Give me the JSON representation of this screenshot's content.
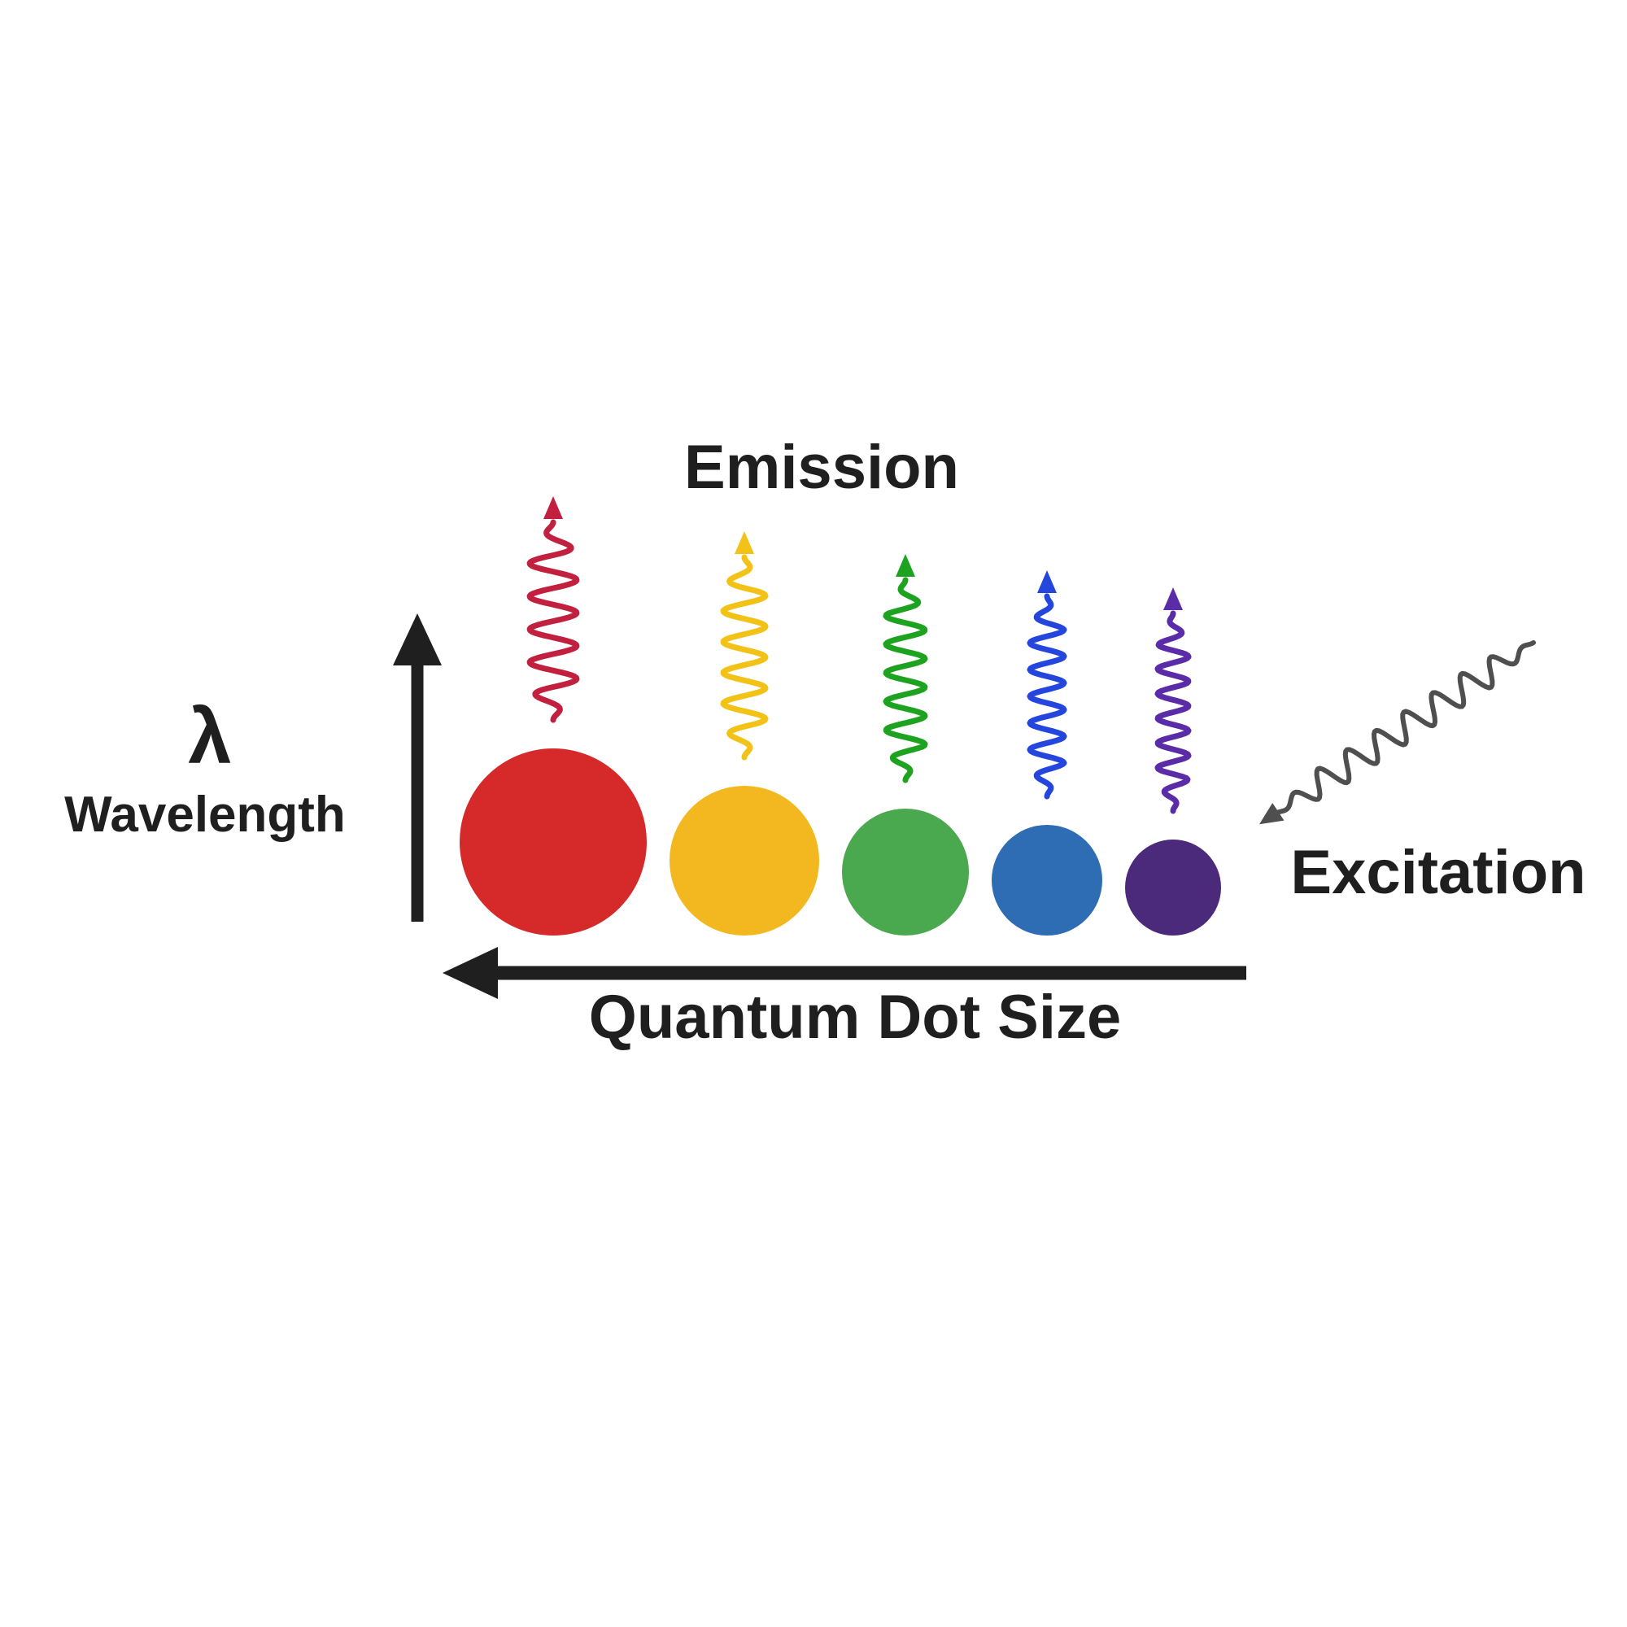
{
  "canvas": {
    "background": "#ffffff",
    "ink": "#1f1f1f"
  },
  "labels": {
    "emission": "Emission",
    "excitation": "Excitation",
    "lambda": "λ",
    "y_axis": "Wavelength",
    "x_axis": "Quantum Dot Size"
  },
  "dots": [
    {
      "name": "red-quantum-dot",
      "color": "#d62a2a",
      "wave_color": "#c2203f",
      "radius": 115,
      "wave_amplitude": 29,
      "wave_cycles": 6,
      "wave_length": 255
    },
    {
      "name": "yellow-quantum-dot",
      "color": "#f3b71f",
      "wave_color": "#f2c216",
      "radius": 92,
      "wave_amplitude": 26,
      "wave_cycles": 6.5,
      "wave_length": 258
    },
    {
      "name": "green-quantum-dot",
      "color": "#4aa84e",
      "wave_color": "#1ea321",
      "radius": 78,
      "wave_amplitude": 24,
      "wave_cycles": 7,
      "wave_length": 258
    },
    {
      "name": "blue-quantum-dot",
      "color": "#2e6db4",
      "wave_color": "#2546dd",
      "radius": 68,
      "wave_amplitude": 21,
      "wave_cycles": 7.5,
      "wave_length": 258
    },
    {
      "name": "purple-quantum-dot",
      "color": "#4b2a7b",
      "wave_color": "#5b2ca8",
      "radius": 59,
      "wave_amplitude": 19,
      "wave_cycles": 8,
      "wave_length": 255
    }
  ],
  "excitation_wave": {
    "color": "#4f4f4f",
    "amplitude": 17,
    "cycles": 9
  }
}
